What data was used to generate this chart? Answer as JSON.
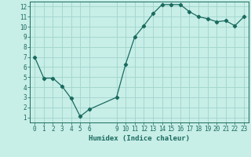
{
  "x": [
    0,
    1,
    2,
    3,
    4,
    5,
    6,
    9,
    10,
    11,
    12,
    13,
    14,
    15,
    16,
    17,
    18,
    19,
    20,
    21,
    22,
    23
  ],
  "y": [
    7.0,
    4.9,
    4.9,
    4.1,
    2.9,
    1.1,
    1.8,
    3.0,
    6.3,
    9.0,
    10.1,
    11.3,
    12.2,
    12.2,
    12.2,
    11.5,
    11.0,
    10.8,
    10.5,
    10.6,
    10.1,
    11.0
  ],
  "line_color": "#1a6b5e",
  "marker_color": "#1a6b5e",
  "bg_color": "#c8eee8",
  "grid_color": "#9fd4cc",
  "xlabel": "Humidex (Indice chaleur)",
  "xticks": [
    0,
    1,
    2,
    3,
    4,
    5,
    6,
    9,
    10,
    11,
    12,
    13,
    14,
    15,
    16,
    17,
    18,
    19,
    20,
    21,
    22,
    23
  ],
  "yticks": [
    1,
    2,
    3,
    4,
    5,
    6,
    7,
    8,
    9,
    10,
    11,
    12
  ],
  "xlim": [
    -0.5,
    23.5
  ],
  "ylim": [
    0.5,
    12.5
  ],
  "xlabel_fontsize": 6.5,
  "tick_fontsize": 5.5,
  "label_color": "#1a6b5e"
}
